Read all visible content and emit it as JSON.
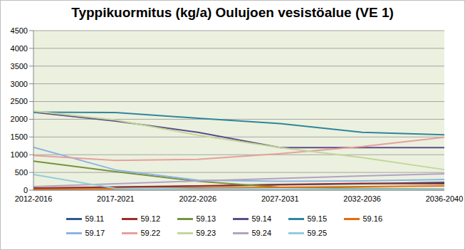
{
  "chart_data": {
    "type": "line",
    "title": "Typpikuormitus (kg/a) Oulujoen vesistöalue (VE 1)",
    "categories": [
      "2012-2016",
      "2017-2021",
      "2022-2026",
      "2027-2031",
      "2032-2036",
      "2036-2040"
    ],
    "series": [
      {
        "name": "59.11",
        "color": "#2c5a91",
        "values": [
          50,
          80,
          110,
          150,
          180,
          220
        ]
      },
      {
        "name": "59.12",
        "color": "#9b2d2a",
        "values": [
          60,
          90,
          120,
          160,
          190,
          180
        ]
      },
      {
        "name": "59.13",
        "color": "#77933c",
        "values": [
          820,
          520,
          250,
          80,
          50,
          30
        ]
      },
      {
        "name": "59.14",
        "color": "#5f4b8b",
        "values": [
          2200,
          1950,
          1630,
          1200,
          1200,
          1200
        ]
      },
      {
        "name": "59.15",
        "color": "#31859c",
        "values": [
          2200,
          2190,
          2030,
          1880,
          1630,
          1560
        ]
      },
      {
        "name": "59.16",
        "color": "#e46c0a",
        "values": [
          20,
          40,
          60,
          80,
          100,
          120
        ]
      },
      {
        "name": "59.17",
        "color": "#8eb4e3",
        "values": [
          1210,
          570,
          280,
          250,
          260,
          300
        ]
      },
      {
        "name": "59.22",
        "color": "#e6a09e",
        "values": [
          980,
          840,
          870,
          1030,
          1230,
          1490
        ]
      },
      {
        "name": "59.23",
        "color": "#c3d69b",
        "values": [
          2230,
          1980,
          1550,
          1200,
          920,
          580
        ]
      },
      {
        "name": "59.24",
        "color": "#b3a2c7",
        "values": [
          100,
          180,
          260,
          330,
          400,
          460
        ]
      },
      {
        "name": "59.25",
        "color": "#93cddd",
        "values": [
          440,
          50,
          30,
          30,
          30,
          30
        ]
      }
    ],
    "ylim": [
      0,
      4500
    ],
    "yticks": [
      0,
      500,
      1000,
      1500,
      2000,
      2500,
      3000,
      3500,
      4000,
      4500
    ],
    "grid": true,
    "legend": "bottom"
  }
}
